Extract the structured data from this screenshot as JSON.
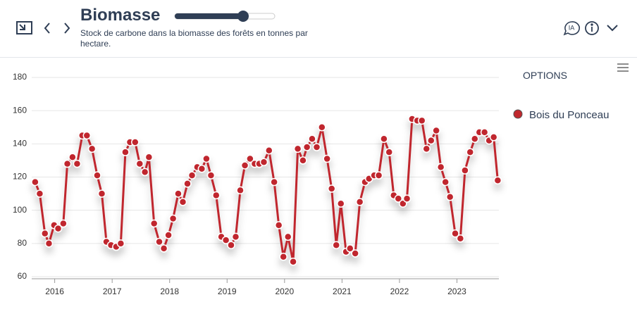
{
  "header": {
    "title": "Biomasse",
    "subtitle": "Stock de carbone dans la biomasse des forêts en tonnes par hectare.",
    "ia_label": "IA",
    "options_label": "OPTIONS"
  },
  "chart_data": {
    "type": "line",
    "x": [
      2015.66,
      2015.74,
      2015.83,
      2015.9,
      2015.99,
      2016.06,
      2016.15,
      2016.22,
      2016.31,
      2016.39,
      2016.48,
      2016.56,
      2016.65,
      2016.74,
      2016.82,
      2016.9,
      2016.98,
      2017.07,
      2017.15,
      2017.23,
      2017.31,
      2017.4,
      2017.48,
      2017.57,
      2017.64,
      2017.73,
      2017.82,
      2017.9,
      2017.98,
      2018.06,
      2018.15,
      2018.23,
      2018.31,
      2018.39,
      2018.48,
      2018.56,
      2018.64,
      2018.72,
      2018.81,
      2018.9,
      2018.98,
      2019.07,
      2019.15,
      2019.23,
      2019.31,
      2019.4,
      2019.48,
      2019.56,
      2019.64,
      2019.73,
      2019.82,
      2019.9,
      2019.98,
      2020.06,
      2020.15,
      2020.23,
      2020.32,
      2020.39,
      2020.48,
      2020.56,
      2020.65,
      2020.74,
      2020.82,
      2020.9,
      2020.98,
      2021.07,
      2021.14,
      2021.23,
      2021.31,
      2021.4,
      2021.47,
      2021.56,
      2021.64,
      2021.73,
      2021.82,
      2021.9,
      2021.98,
      2022.06,
      2022.13,
      2022.22,
      2022.31,
      2022.39,
      2022.47,
      2022.55,
      2022.64,
      2022.72,
      2022.8,
      2022.88,
      2022.97,
      2023.06,
      2023.14,
      2023.23,
      2023.31,
      2023.39,
      2023.48,
      2023.56,
      2023.64,
      2023.71
    ],
    "series": [
      {
        "name": "Bois du Ponceau",
        "color": "#c0282d",
        "values": [
          117,
          110,
          86,
          80,
          91,
          89,
          92,
          128,
          132,
          128,
          145,
          145,
          137,
          121,
          110,
          81,
          79,
          78,
          80,
          135,
          141,
          141,
          128,
          123,
          132,
          92,
          81,
          77,
          85,
          95,
          110,
          105,
          116,
          121,
          126,
          125,
          131,
          121,
          109,
          84,
          82,
          79,
          84,
          112,
          127,
          131,
          128,
          128,
          129,
          136,
          117,
          91,
          72,
          84,
          69,
          137,
          130,
          138,
          143,
          138,
          150,
          131,
          113,
          79,
          104,
          75,
          77,
          74,
          105,
          117,
          119,
          121,
          121,
          143,
          135,
          109,
          107,
          104,
          107,
          155,
          154,
          154,
          137,
          142,
          148,
          126,
          117,
          108,
          86,
          83,
          124,
          135,
          143,
          147,
          147,
          142,
          144,
          118
        ]
      }
    ],
    "xlim": [
      2015.6,
      2023.73
    ],
    "xticks": [
      2016,
      2017,
      2018,
      2019,
      2020,
      2021,
      2022,
      2023
    ],
    "ylim": [
      60,
      180
    ],
    "yticks": [
      60,
      80,
      100,
      120,
      140,
      160,
      180
    ],
    "grid": true
  }
}
